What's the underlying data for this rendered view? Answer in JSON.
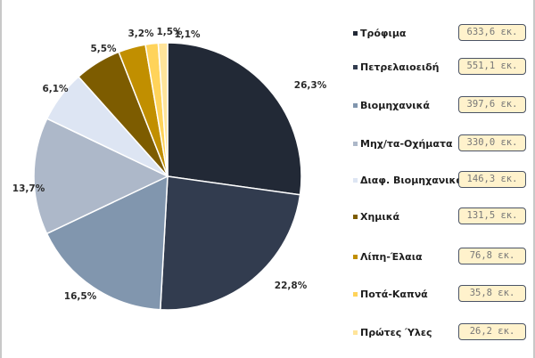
{
  "chart_data": {
    "type": "pie",
    "unit": "εκ.",
    "categories": [
      "Τρόφιμα",
      "Πετρελαιοειδή",
      "Βιομηχανικά",
      "Μηχ/τα-Οχήματα",
      "Διαφ. Βιομηχανικά",
      "Χημικά",
      "Λίπη-Έλαια",
      "Ποτά-Καπνά",
      "Πρώτες Ύλες"
    ],
    "values": [
      633.6,
      551.1,
      397.6,
      330.0,
      146.3,
      131.5,
      76.8,
      35.8,
      26.2
    ],
    "value_labels": [
      "633,6 εκ.",
      "551,1 εκ.",
      "397,6 εκ.",
      "330,0 εκ.",
      "146,3 εκ.",
      "131,5 εκ.",
      "76,8 εκ.",
      "35,8 εκ.",
      "26,2 εκ."
    ],
    "percent_labels": [
      "26,3%",
      "22,8%",
      "16,5%",
      "13,7%",
      "6,1%",
      "5,5%",
      "3,2%",
      "1,5%",
      "1,1%"
    ],
    "colors": [
      "#222936",
      "#323c4f",
      "#8196ae",
      "#adb8c9",
      "#dde5f3",
      "#7d5c00",
      "#c18f00",
      "#ffd35a",
      "#ffe49a"
    ],
    "legend": "right",
    "start": "12 o'clock, clockwise"
  }
}
